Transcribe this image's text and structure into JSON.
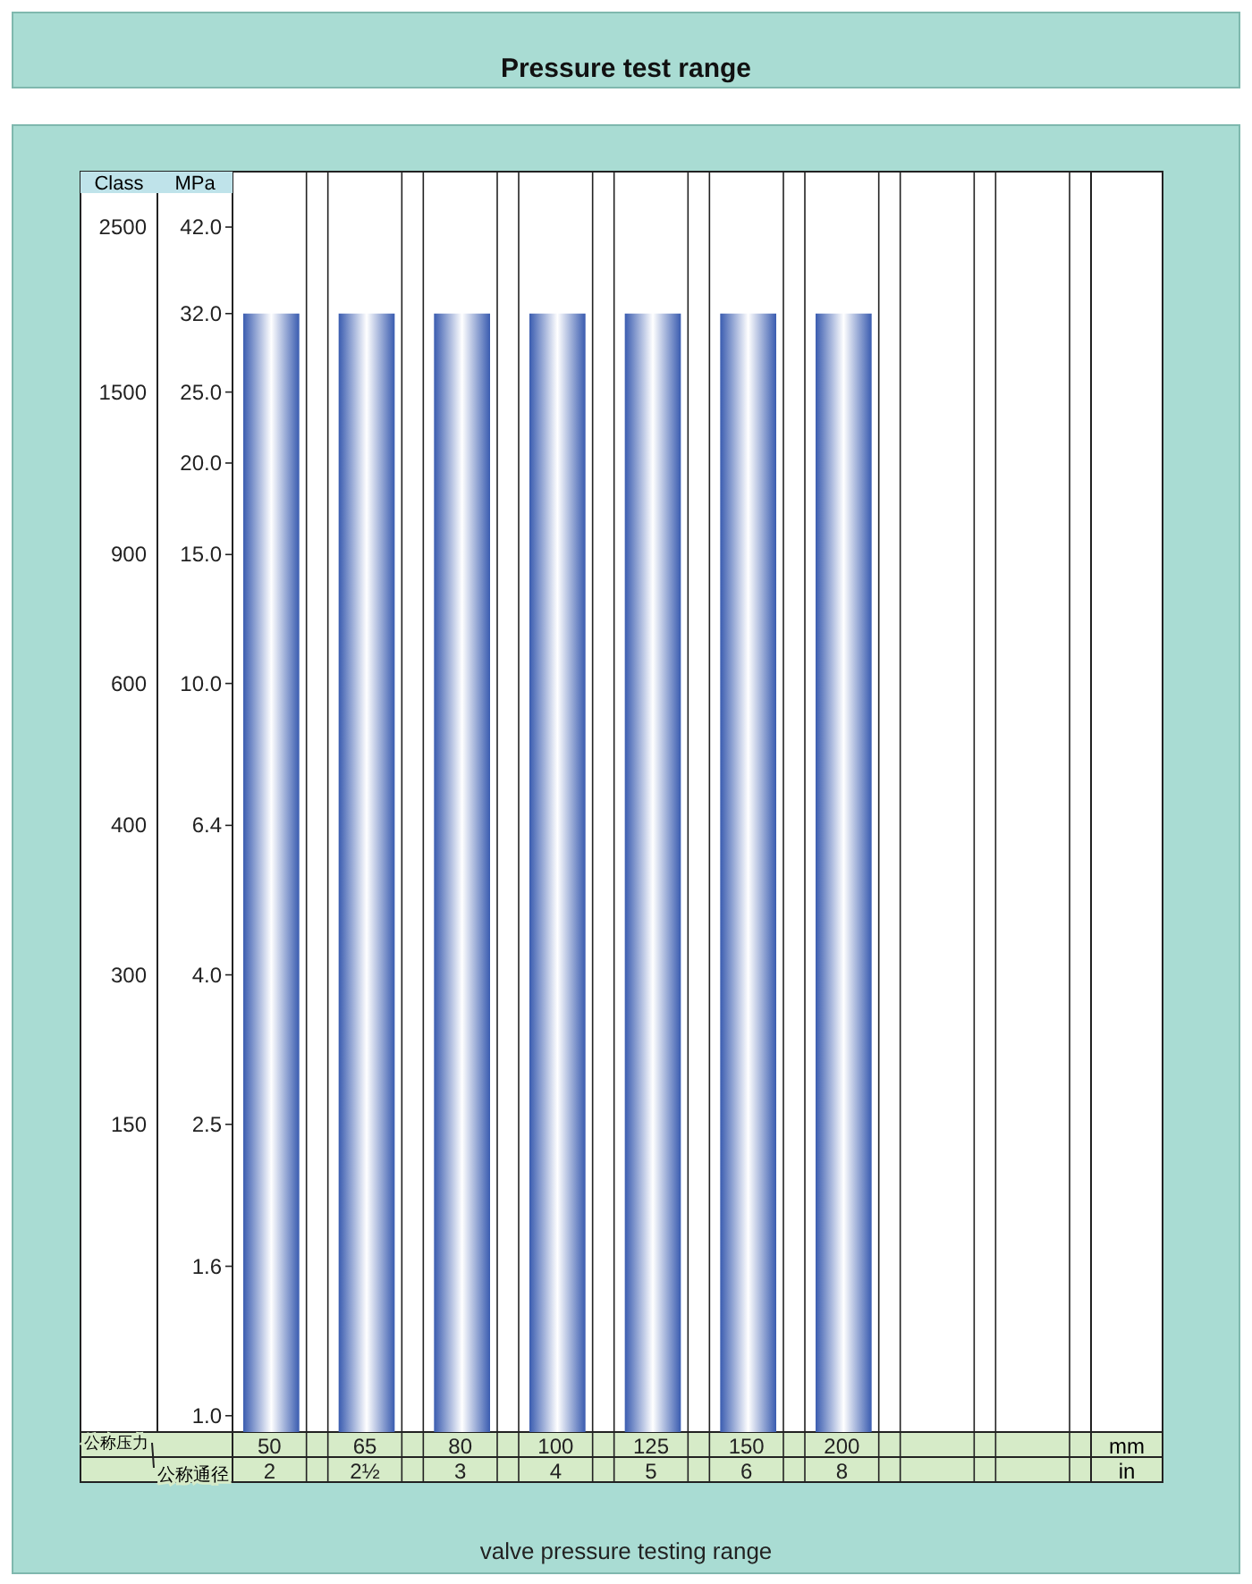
{
  "chart_data": {
    "type": "bar",
    "title": "Pressure test range",
    "categories": [
      "50\n2",
      "65\n2½",
      "80\n3",
      "100\n4",
      "125\n5",
      "150\n6",
      "200\n8",
      null,
      null
    ],
    "values": [
      32,
      32,
      32,
      32,
      32,
      32,
      32,
      null,
      null
    ],
    "color": "#3a5cb0",
    "ylabel": "MPa",
    "xlabel": "公称通径",
    "log": true,
    "ylim": [
      0.95,
      50
    ],
    "yticks": [
      {
        "value": 42,
        "label": "42.0"
      },
      {
        "value": 32,
        "label": "32.0"
      },
      {
        "value": 25,
        "label": "25.0"
      },
      {
        "value": 20,
        "label": "20.0"
      },
      {
        "value": 15,
        "label": "15.0"
      },
      {
        "value": 10,
        "label": "10.0"
      },
      6.4,
      {
        "value": 4,
        "label": "4.0"
      },
      2.5,
      1.6,
      {
        "value": 1,
        "label": "1.0"
      }
    ],
    "annotations": [
      "公称压力",
      "mm",
      "in",
      "valve pressure testing range",
      "Class",
      "2500",
      "1500",
      "900",
      "600",
      "400",
      "300",
      "150"
    ]
  }
}
